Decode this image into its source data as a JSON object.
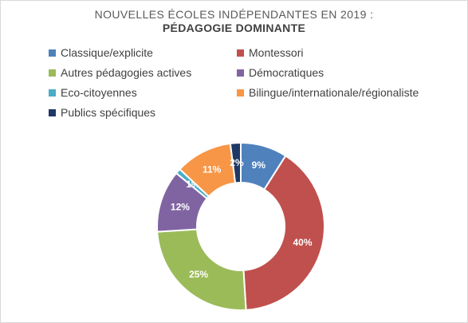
{
  "chart_data": {
    "type": "pie",
    "variant": "donut",
    "title": "NOUVELLES ÉCOLES INDÉPENDANTES EN 2019 :",
    "subtitle": "PÉDAGOGIE DOMINANTE",
    "legend_position": "top",
    "slices": [
      {
        "label": "Classique/explicite",
        "value": 9,
        "display": "9%",
        "color": "#4f81bd"
      },
      {
        "label": "Montessori",
        "value": 40,
        "display": "40%",
        "color": "#c0504d"
      },
      {
        "label": "Autres pédagogies actives",
        "value": 25,
        "display": "25%",
        "color": "#9bbb59"
      },
      {
        "label": "Démocratiques",
        "value": 12,
        "display": "12%",
        "color": "#8064a2"
      },
      {
        "label": "Eco-citoyennes",
        "value": 1,
        "display": "1%",
        "color": "#4bacc6"
      },
      {
        "label": "Bilingue/internationale/régionaliste",
        "value": 11,
        "display": "11%",
        "color": "#f79646"
      },
      {
        "label": "Publics spécifiques",
        "value": 2,
        "display": "2%",
        "color": "#1f3864"
      }
    ]
  }
}
